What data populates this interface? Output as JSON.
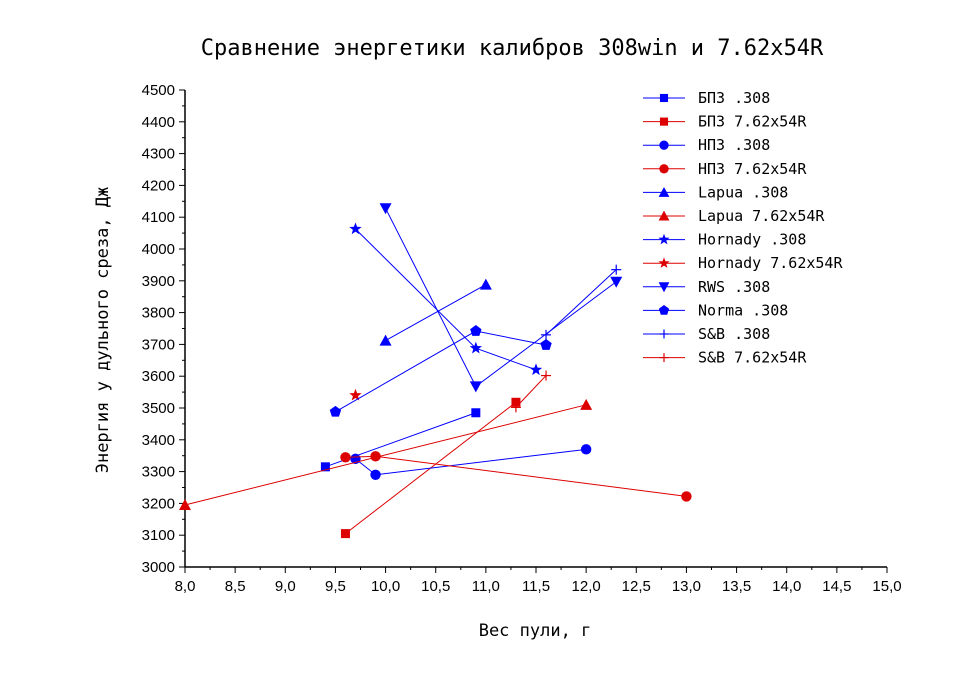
{
  "chart_data": {
    "type": "scatter",
    "title": "Сравнение энергетики калибров 308win и 7.62x54R",
    "xlabel": "Вес пули, г",
    "ylabel": "Энергия у дульного среза, Дж",
    "xlim": [
      8.0,
      15.0
    ],
    "ylim": [
      3000,
      4500
    ],
    "x_ticks": [
      "8,0",
      "8,5",
      "9,0",
      "9,5",
      "10,0",
      "10,5",
      "11,0",
      "11,5",
      "12,0",
      "12,5",
      "13,0",
      "13,5",
      "14,0",
      "14,5",
      "15,0"
    ],
    "y_ticks": [
      "3000",
      "3100",
      "3200",
      "3300",
      "3400",
      "3500",
      "3600",
      "3700",
      "3800",
      "3900",
      "4000",
      "4100",
      "4200",
      "4300",
      "4400",
      "4500"
    ],
    "grid": false,
    "legend_position": "top-right",
    "series": [
      {
        "name": "БПЗ .308",
        "color": "#0000ff",
        "marker": "square",
        "points": [
          [
            9.4,
            3315
          ],
          [
            10.9,
            3485
          ]
        ]
      },
      {
        "name": "БПЗ 7.62x54R",
        "color": "#dd0000",
        "marker": "square",
        "points": [
          [
            9.6,
            3105
          ],
          [
            11.3,
            3518
          ]
        ]
      },
      {
        "name": "НПЗ .308",
        "color": "#0000ff",
        "marker": "circle",
        "points": [
          [
            9.7,
            3340
          ],
          [
            9.9,
            3290
          ],
          [
            12.0,
            3370
          ]
        ]
      },
      {
        "name": "НПЗ 7.62x54R",
        "color": "#dd0000",
        "marker": "circle",
        "points": [
          [
            9.6,
            3345
          ],
          [
            9.9,
            3348
          ],
          [
            13.0,
            3222
          ]
        ]
      },
      {
        "name": "Lapua .308",
        "color": "#0000ff",
        "marker": "triangle-up",
        "points": [
          [
            10.0,
            3712
          ],
          [
            11.0,
            3888
          ]
        ]
      },
      {
        "name": "Lapua 7.62x54R",
        "color": "#dd0000",
        "marker": "triangle-up",
        "points": [
          [
            8.0,
            3195
          ],
          [
            12.0,
            3510
          ]
        ]
      },
      {
        "name": "Hornady .308",
        "color": "#0000ff",
        "marker": "star",
        "points": [
          [
            9.7,
            4063
          ],
          [
            10.9,
            3688
          ],
          [
            11.5,
            3620
          ]
        ]
      },
      {
        "name": "Hornady 7.62x54R",
        "color": "#dd0000",
        "marker": "star",
        "points": [
          [
            9.7,
            3540
          ]
        ]
      },
      {
        "name": "RWS .308",
        "color": "#0000ff",
        "marker": "triangle-down",
        "points": [
          [
            10.0,
            4128
          ],
          [
            10.9,
            3568
          ],
          [
            12.3,
            3897
          ]
        ]
      },
      {
        "name": "Norma .308",
        "color": "#0000ff",
        "marker": "pentagon",
        "points": [
          [
            9.5,
            3488
          ],
          [
            10.9,
            3742
          ],
          [
            11.6,
            3698
          ]
        ]
      },
      {
        "name": "S&B .308",
        "color": "#0000ff",
        "marker": "plus",
        "points": [
          [
            11.6,
            3730
          ],
          [
            12.3,
            3935
          ]
        ]
      },
      {
        "name": "S&B 7.62x54R",
        "color": "#dd0000",
        "marker": "plus",
        "points": [
          [
            11.3,
            3502
          ],
          [
            11.6,
            3602
          ]
        ]
      }
    ]
  }
}
